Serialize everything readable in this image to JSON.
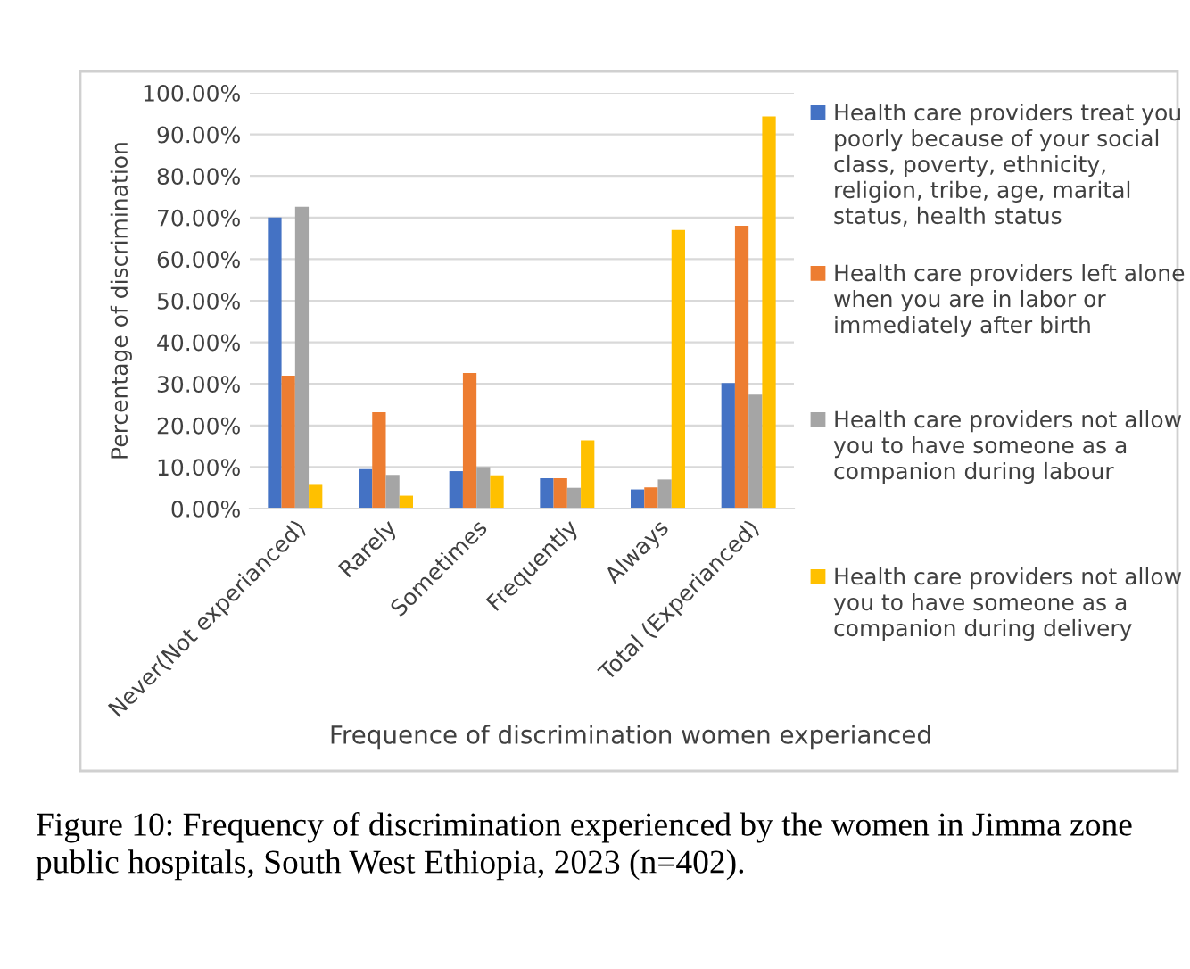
{
  "chart_data": {
    "type": "bar",
    "xlabel": "Frequence of discrimination women experianced",
    "ylabel": "Percentage of discrimination",
    "categories": [
      "Never(Not experianced)",
      "Rarely",
      "Sometimes",
      "Frequently",
      "Always",
      "Total (Experianced)"
    ],
    "series": [
      {
        "name": "Health care providers treat you poorly because of your social class, poverty, ethnicity, religion, tribe, age, marital status, health status",
        "color": "#4472c4",
        "values": [
          70,
          9.5,
          9,
          7.3,
          4.6,
          30.2
        ]
      },
      {
        "name": "Health care providers left alone when you are in labor or immediately after birth",
        "color": "#ed7d31",
        "values": [
          32,
          23.2,
          32.6,
          7.3,
          5.1,
          68
        ]
      },
      {
        "name": "Health care providers not allow you to have someone as a companion during labour",
        "color": "#a5a5a5",
        "values": [
          72.6,
          8.1,
          10,
          5,
          7,
          27.4
        ]
      },
      {
        "name": "Health care providers not allow you to have someone as a companion during delivery",
        "color": "#ffc000",
        "values": [
          5.7,
          3.1,
          8,
          16.4,
          67,
          94.3
        ]
      }
    ],
    "ylim": [
      0,
      100
    ],
    "yticks": [
      {
        "value": 0,
        "label": "0.00%"
      },
      {
        "value": 10,
        "label": "10.00%"
      },
      {
        "value": 20,
        "label": "20.00%"
      },
      {
        "value": 30,
        "label": "30.00%"
      },
      {
        "value": 40,
        "label": "40.00%"
      },
      {
        "value": 50,
        "label": "50.00%"
      },
      {
        "value": 60,
        "label": "60.00%"
      },
      {
        "value": 70,
        "label": "70.00%"
      },
      {
        "value": 80,
        "label": "80.00%"
      },
      {
        "value": 90,
        "label": "90.00%"
      },
      {
        "value": 100,
        "label": "100.00%"
      }
    ],
    "grid": "y",
    "legend": "right",
    "annotations": [
      "Figure 10: Frequency of discrimination experienced by the women in Jimma zone public hospitals, South West Ethiopia, 2023 (n=402)."
    ]
  }
}
